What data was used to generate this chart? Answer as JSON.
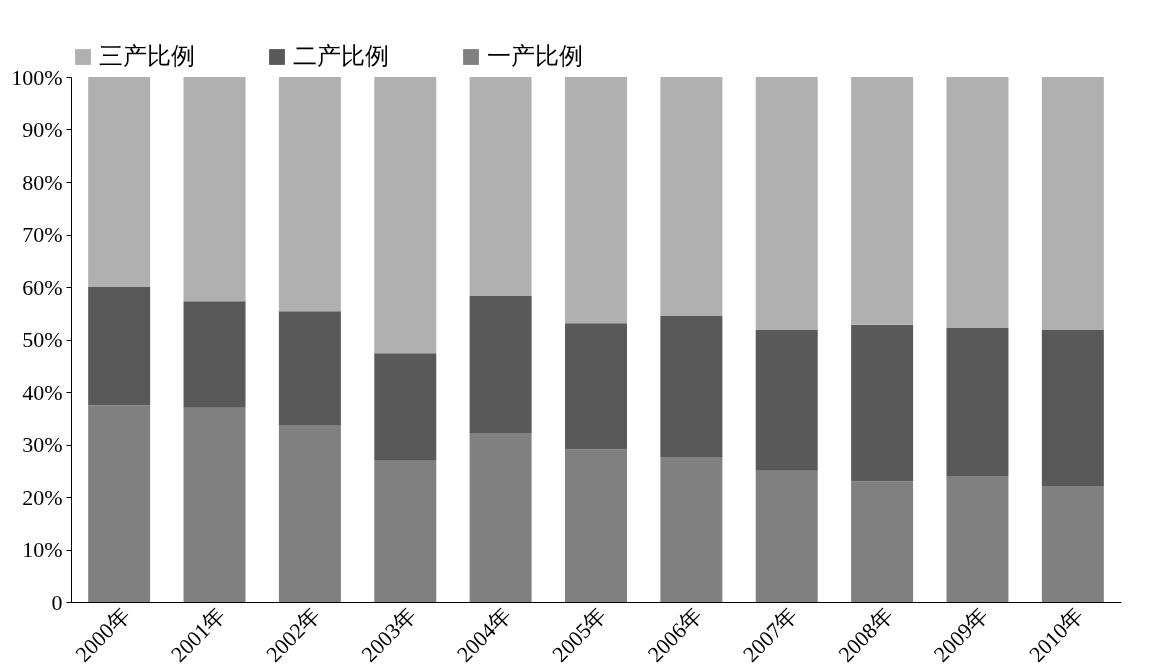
{
  "chart_data": {
    "type": "bar",
    "stacked": true,
    "legend": "top",
    "grid": false,
    "categories": [
      "2000年",
      "2001年",
      "2002年",
      "2003年",
      "2004年",
      "2005年",
      "2006年",
      "2007年",
      "2008年",
      "2009年",
      "2010年"
    ],
    "series": [
      {
        "name": "一产比例",
        "color": "#808080",
        "values": [
          37.5,
          37,
          33.7,
          26.9,
          32.2,
          29.1,
          27.6,
          25,
          23,
          24,
          22.1
        ]
      },
      {
        "name": "二产比例",
        "color": "#595959",
        "values": [
          22.5,
          20.3,
          21.7,
          20.5,
          26.1,
          24,
          26.9,
          26.8,
          29.8,
          28.2,
          29.7
        ]
      },
      {
        "name": "三产比例",
        "color": "#b0b0b0",
        "values": [
          40,
          42.7,
          44.6,
          52.6,
          41.7,
          46.9,
          45.5,
          48.2,
          47.2,
          47.8,
          48.2
        ]
      }
    ],
    "ylim": [
      0,
      100
    ],
    "yticks": [
      0,
      {
        "value": 10,
        "label": "10%"
      },
      {
        "value": 20,
        "label": "20%"
      },
      {
        "value": 30,
        "label": "30%"
      },
      {
        "value": 40,
        "label": "40%"
      },
      {
        "value": 50,
        "label": "50%"
      },
      {
        "value": 60,
        "label": "60%"
      },
      {
        "value": 70,
        "label": "70%"
      },
      {
        "value": 80,
        "label": "80%"
      },
      {
        "value": 90,
        "label": "90%"
      },
      {
        "value": 100,
        "label": "100%"
      }
    ]
  }
}
